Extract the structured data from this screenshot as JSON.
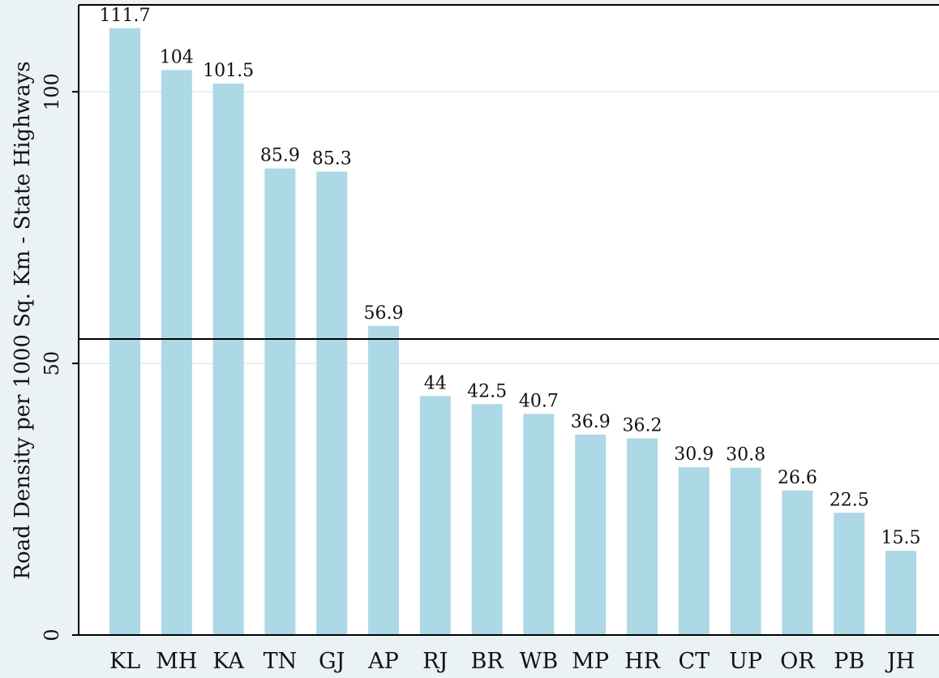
{
  "chart_data": {
    "type": "bar",
    "title": "",
    "xlabel": "",
    "ylabel": "Road Density per 1000 Sq. Km - State Highways",
    "ylim": [
      0,
      116
    ],
    "yticks": [
      0,
      50,
      100
    ],
    "grid": true,
    "reference_line": 54.5,
    "categories": [
      "KL",
      "MH",
      "KA",
      "TN",
      "GJ",
      "AP",
      "RJ",
      "BR",
      "WB",
      "MP",
      "HR",
      "CT",
      "UP",
      "OR",
      "PB",
      "JH"
    ],
    "values": [
      111.7,
      104,
      101.5,
      85.9,
      85.3,
      56.9,
      44,
      42.5,
      40.7,
      36.9,
      36.2,
      30.9,
      30.8,
      26.6,
      22.5,
      15.5
    ],
    "value_labels": [
      "111.7",
      "104",
      "101.5",
      "85.9",
      "85.3",
      "56.9",
      "44",
      "42.5",
      "40.7",
      "36.9",
      "36.2",
      "30.9",
      "30.8",
      "26.6",
      "22.5",
      "15.5"
    ]
  },
  "colors": {
    "background": "#eaf2f3",
    "plot_background": "#ffffff",
    "bar": "#add8e6",
    "grid": "#e4eeee",
    "axis": "#000000",
    "reference_line": "#000000"
  }
}
